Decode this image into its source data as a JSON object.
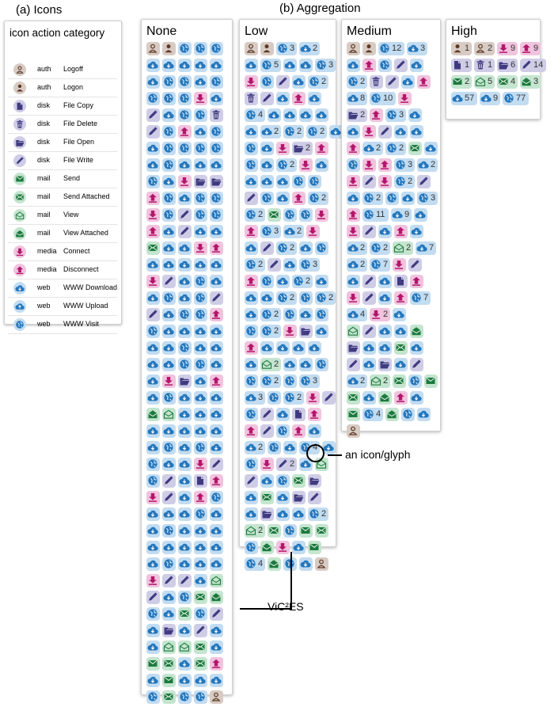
{
  "titles": {
    "icons": "(a) Icons",
    "aggregation": "(b) Aggregation"
  },
  "legend": {
    "header": "icon action category",
    "rows": [
      {
        "category": "auth",
        "action": "Logoff",
        "icon": "logoff-icon"
      },
      {
        "category": "auth",
        "action": "Logon",
        "icon": "logon-icon"
      },
      {
        "category": "disk",
        "action": "File Copy",
        "icon": "file-copy-icon"
      },
      {
        "category": "disk",
        "action": "File Delete",
        "icon": "file-delete-icon"
      },
      {
        "category": "disk",
        "action": "File Open",
        "icon": "file-open-icon"
      },
      {
        "category": "disk",
        "action": "File Write",
        "icon": "file-write-icon"
      },
      {
        "category": "mail",
        "action": "Send",
        "icon": "send-icon"
      },
      {
        "category": "mail",
        "action": "Send Attached",
        "icon": "send-attached-icon"
      },
      {
        "category": "mail",
        "action": "View",
        "icon": "view-icon"
      },
      {
        "category": "mail",
        "action": "View Attached",
        "icon": "view-attached-icon"
      },
      {
        "category": "media",
        "action": "Connect",
        "icon": "connect-icon"
      },
      {
        "category": "media",
        "action": "Disconnect",
        "icon": "disconnect-icon"
      },
      {
        "category": "web",
        "action": "WWW Download",
        "icon": "www-download-icon"
      },
      {
        "category": "web",
        "action": "WWW Upload",
        "icon": "www-upload-icon"
      },
      {
        "category": "web",
        "action": "WWW Visit",
        "icon": "www-visit-icon"
      }
    ]
  },
  "icon_colors": {
    "auth": {
      "bg": "#d8cbc3",
      "fg": "#5b3a26"
    },
    "disk": {
      "bg": "#cfcde6",
      "fg": "#3f3a80"
    },
    "mail": {
      "bg": "#c4e5cf",
      "fg": "#1d7a3e"
    },
    "media": {
      "bg": "#f0c3de",
      "fg": "#b3176a"
    },
    "web": {
      "bg": "#c2dcf1",
      "fg": "#2477bd"
    }
  },
  "panels": [
    {
      "key": "none",
      "title": "None",
      "rows": [
        [
          "LF",
          "LN",
          "WV",
          "WV",
          "WV"
        ],
        [
          "WD",
          "WD",
          "WD",
          "WD",
          "WD"
        ],
        [
          "WD",
          "WV",
          "WV",
          "WD",
          "WV"
        ],
        [
          "WV",
          "WV",
          "WV",
          "MC",
          "WD"
        ],
        [
          "FW",
          "WD",
          "WV",
          "WV",
          "FD"
        ],
        [
          "FW",
          "WV",
          "MD",
          "WD",
          "WV"
        ],
        [
          "WD",
          "WV",
          "WV",
          "WV",
          "WV"
        ],
        [
          "WD",
          "WV",
          "WD",
          "WD",
          "WD"
        ],
        [
          "WV",
          "WD",
          "MC",
          "FO",
          "FO"
        ],
        [
          "MD",
          "WV",
          "WD",
          "WV",
          "WV"
        ],
        [
          "MC",
          "WV",
          "FW",
          "WV",
          "WV"
        ],
        [
          "MD",
          "WD",
          "FW",
          "WD",
          "WD"
        ],
        [
          "SA",
          "WD",
          "WD",
          "MC",
          "MD"
        ],
        [
          "WD",
          "WD",
          "WD",
          "WD",
          "WD"
        ],
        [
          "MC",
          "FW",
          "WD",
          "WV",
          "WD"
        ],
        [
          "WD",
          "WV",
          "WD",
          "WV",
          "FW"
        ],
        [
          "FW",
          "WD",
          "WV",
          "WV",
          "MD"
        ],
        [
          "WV",
          "WD",
          "WD",
          "WD",
          "WD"
        ],
        [
          "WD",
          "WD",
          "WV",
          "WD",
          "WD"
        ],
        [
          "WD",
          "WD",
          "WV",
          "WV",
          "WD"
        ],
        [
          "WD",
          "MC",
          "FO",
          "WD",
          "MD"
        ],
        [
          "WD",
          "WV",
          "WD",
          "WD",
          "WD"
        ],
        [
          "VA",
          "V",
          "WD",
          "WD",
          "WD"
        ],
        [
          "WD",
          "WD",
          "WD",
          "WD",
          "WD"
        ],
        [
          "WD",
          "WV",
          "WD",
          "WV",
          "WD"
        ],
        [
          "WV",
          "WD",
          "WD",
          "MC",
          "FW"
        ],
        [
          "WV",
          "FW",
          "WD",
          "FC",
          "MD"
        ],
        [
          "MC",
          "FW",
          "WD",
          "MD",
          "WV"
        ],
        [
          "WD",
          "WD",
          "WD",
          "WV",
          "WD"
        ],
        [
          "WD",
          "WV",
          "WD",
          "WD",
          "WD"
        ],
        [
          "WD",
          "WD",
          "WD",
          "WD",
          "WD"
        ],
        [
          "WD",
          "WV",
          "WD",
          "WD",
          "WD"
        ],
        [
          "MC",
          "FW",
          "FW",
          "WD",
          "V"
        ],
        [
          "FW",
          "WD",
          "WV",
          "SA",
          "VA"
        ],
        [
          "WV",
          "WD",
          "SA",
          "WV",
          "FW"
        ],
        [
          "WD",
          "FO",
          "WD",
          "FW",
          "WD"
        ],
        [
          "WD",
          "V",
          "V",
          "SA",
          "WD"
        ],
        [
          "S",
          "SA",
          "WD",
          "SA",
          "MD"
        ],
        [
          "WD",
          "S",
          "WD",
          "WD",
          "WD"
        ],
        [
          "WV",
          "SA",
          "WV",
          "WV",
          "LF"
        ]
      ]
    },
    {
      "key": "low",
      "title": "Low",
      "rows": [
        [
          "LF",
          "LN",
          "WV3",
          "WD2"
        ],
        [
          "WD",
          "WV5",
          "WD",
          "WD",
          "WV3"
        ],
        [
          "MC",
          "WV",
          "FW",
          "WD",
          "WV2"
        ],
        [
          "FD",
          "FW",
          "WD",
          "MD",
          "WD"
        ],
        [
          "WV4",
          "WD",
          "WD",
          "WD",
          "WD"
        ],
        [
          "WD",
          "WD2",
          "WV2",
          "WV2",
          "WD"
        ],
        [
          "WV",
          "WD",
          "MC",
          "FO2",
          "MD"
        ],
        [
          "WV",
          "WD",
          "WV2",
          "MC",
          "WD"
        ],
        [
          "WD",
          "WD",
          "WD",
          "WV",
          "WV"
        ],
        [
          "FW",
          "WV",
          "WD",
          "MD",
          "WV2"
        ],
        [
          "WV2",
          "SA",
          "WV",
          "WV",
          "MC"
        ],
        [
          "MD",
          "WV3",
          "WD2",
          "MC"
        ],
        [
          "WD",
          "FW",
          "WV2",
          "WD",
          "WV"
        ],
        [
          "WV2",
          "FW",
          "WD",
          "WV3"
        ],
        [
          "MD",
          "WV",
          "WD",
          "WV2",
          "WD"
        ],
        [
          "WD",
          "WD",
          "WV2",
          "WV",
          "WV2"
        ],
        [
          "WD",
          "WV2",
          "WV",
          "WD",
          "WV"
        ],
        [
          "WV",
          "WV2",
          "MC",
          "FO",
          "WD"
        ],
        [
          "MD",
          "WD",
          "WD",
          "WD",
          "WD"
        ],
        [
          "WD",
          "V2",
          "WD",
          "WD",
          "WV"
        ],
        [
          "WV",
          "WV2",
          "WV",
          "WV3"
        ],
        [
          "WD3",
          "WV",
          "WV2",
          "MC",
          "FW"
        ],
        [
          "WV",
          "FW",
          "WD",
          "FC",
          "MD"
        ],
        [
          "MD",
          "FW",
          "WV",
          "MD",
          "WD"
        ],
        [
          "WD2",
          "WV",
          "WD",
          "WV4",
          "WD"
        ],
        [
          "WV",
          "MC",
          "FW2",
          "WD",
          "V"
        ],
        [
          "FW",
          "WD",
          "WV",
          "SA",
          "FO"
        ],
        [
          "WD",
          "SA",
          "WD",
          "FO",
          "FW"
        ],
        [
          "WD",
          "FO",
          "WD",
          "WD",
          "WV2"
        ],
        [
          "V2",
          "SA",
          "WV",
          "S",
          "SA"
        ],
        [
          "WV",
          "VA",
          "MC",
          "WD",
          "S"
        ],
        [
          "WV4",
          "VA",
          "WV",
          "WD",
          "LF"
        ]
      ]
    },
    {
      "key": "medium",
      "title": "Medium",
      "rows": [
        [
          "LF",
          "LN",
          "WV12",
          "WD3"
        ],
        [
          "WD",
          "MD",
          "WV",
          "FW",
          "WD"
        ],
        [
          "WV2",
          "FD",
          "FW",
          "WD",
          "MD"
        ],
        [
          "WD8",
          "WV10",
          "MC"
        ],
        [
          "FO2",
          "MD",
          "WV3",
          "WD"
        ],
        [
          "WD",
          "MC",
          "FW",
          "WD",
          "WD"
        ],
        [
          "MD",
          "WD2",
          "WV2",
          "SA",
          "WD"
        ],
        [
          "WV",
          "MC",
          "MD",
          "WV3",
          "WD2"
        ],
        [
          "MC",
          "FW",
          "MC",
          "WV2",
          "FW"
        ],
        [
          "WD",
          "WV2",
          "WV",
          "WD",
          "WV3"
        ],
        [
          "MD",
          "WV11",
          "WD9",
          "WD"
        ],
        [
          "MC",
          "FW",
          "WD",
          "MD",
          "WD"
        ],
        [
          "WD2",
          "WV2",
          "V2",
          "WD7"
        ],
        [
          "WD2",
          "WV7",
          "MC",
          "FW"
        ],
        [
          "WD",
          "FW",
          "WD",
          "FC",
          "MD"
        ],
        [
          "MC",
          "FW",
          "WD",
          "MD",
          "WV7"
        ],
        [
          "WD4",
          "MC2",
          "WD"
        ],
        [
          "V",
          "FW",
          "WD",
          "WD",
          "VA"
        ],
        [
          "FO",
          "WD",
          "WD",
          "SA",
          "WD"
        ],
        [
          "FW",
          "WD",
          "FO",
          "WD",
          "FW"
        ],
        [
          "WD2",
          "V2",
          "SA",
          "WV",
          "S"
        ],
        [
          "SA",
          "WD",
          "VA",
          "MD",
          "WD"
        ],
        [
          "S",
          "WV4",
          "VA",
          "WV",
          "WD"
        ],
        [
          "LF"
        ]
      ]
    },
    {
      "key": "high",
      "title": "High",
      "rows": [
        [
          "LN1",
          "LF2",
          "MC9",
          "MD9"
        ],
        [
          "FC1",
          "FD1",
          "FO6",
          "FW14"
        ],
        [
          "S2",
          "V5",
          "SA4",
          "VA3"
        ],
        [
          "WD57",
          "WD9",
          "WV77"
        ]
      ]
    }
  ],
  "annotations": {
    "glyph": "an icon/glyph",
    "vices": "ViC²ES"
  }
}
